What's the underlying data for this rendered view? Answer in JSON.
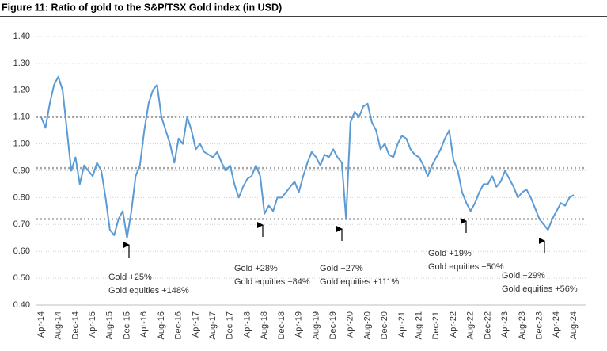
{
  "chart_data": {
    "type": "line",
    "title": "Figure 11: Ratio of gold to the S&P/TSX Gold index (in USD)",
    "categories": [
      "Apr-14",
      null,
      null,
      null,
      "Aug-14",
      null,
      null,
      null,
      "Dec-14",
      null,
      null,
      null,
      "Apr-15",
      null,
      null,
      null,
      "Aug-15",
      null,
      null,
      null,
      "Dec-15",
      null,
      null,
      null,
      "Apr-16",
      null,
      null,
      null,
      "Aug-16",
      null,
      null,
      null,
      "Dec-16",
      null,
      null,
      null,
      "Apr-17",
      null,
      null,
      null,
      "Aug-17",
      null,
      null,
      null,
      "Dec-17",
      null,
      null,
      null,
      "Apr-18",
      null,
      null,
      null,
      "Aug-18",
      null,
      null,
      null,
      "Dec-18",
      null,
      null,
      null,
      "Apr-19",
      null,
      null,
      null,
      "Aug-19",
      null,
      null,
      null,
      "Dec-19",
      null,
      null,
      null,
      "Apr-20",
      null,
      null,
      null,
      "Aug-20",
      null,
      null,
      null,
      "Dec-20",
      null,
      null,
      null,
      "Apr-21",
      null,
      null,
      null,
      "Aug-21",
      null,
      null,
      null,
      "Dec-21",
      null,
      null,
      null,
      "Apr-22",
      null,
      null,
      null,
      "Aug-22",
      null,
      null,
      null,
      "Dec-22",
      null,
      null,
      null,
      "Apr-23",
      null,
      null,
      null,
      "Aug-23",
      null,
      null,
      null,
      "Dec-23",
      null,
      null,
      null,
      "Apr-24",
      null,
      null,
      null,
      "Aug-24"
    ],
    "series": [
      {
        "color": "#5b9bd5",
        "values": [
          1.1,
          1.06,
          1.15,
          1.22,
          1.25,
          1.2,
          1.05,
          0.9,
          0.95,
          0.85,
          0.92,
          0.9,
          0.88,
          0.93,
          0.9,
          0.8,
          0.68,
          0.66,
          0.72,
          0.75,
          0.65,
          0.75,
          0.88,
          0.92,
          1.05,
          1.15,
          1.2,
          1.22,
          1.1,
          1.05,
          1.0,
          0.93,
          1.02,
          1.0,
          1.1,
          1.05,
          0.98,
          1.0,
          0.97,
          0.96,
          0.95,
          0.97,
          0.93,
          0.9,
          0.92,
          0.85,
          0.8,
          0.84,
          0.87,
          0.88,
          0.92,
          0.88,
          0.74,
          0.77,
          0.75,
          0.8,
          0.8,
          0.82,
          0.84,
          0.86,
          0.82,
          0.88,
          0.93,
          0.97,
          0.95,
          0.92,
          0.96,
          0.95,
          0.98,
          0.95,
          0.93,
          0.72,
          1.08,
          1.12,
          1.1,
          1.14,
          1.15,
          1.08,
          1.05,
          0.98,
          1.0,
          0.96,
          0.95,
          1.0,
          1.03,
          1.02,
          0.98,
          0.96,
          0.95,
          0.92,
          0.88,
          0.92,
          0.95,
          0.98,
          1.02,
          1.05,
          0.94,
          0.9,
          0.82,
          0.78,
          0.75,
          0.78,
          0.82,
          0.85,
          0.85,
          0.88,
          0.84,
          0.86,
          0.9,
          0.87,
          0.84,
          0.8,
          0.82,
          0.83,
          0.8,
          0.76,
          0.72,
          0.7,
          0.68,
          0.72,
          0.75,
          0.78,
          0.77,
          0.8,
          0.81
        ]
      }
    ],
    "ylim": [
      0.4,
      1.4
    ],
    "yticks": [
      {
        "value": 0.4,
        "label": "0.40"
      },
      {
        "value": 0.5,
        "label": "0.50"
      },
      {
        "value": 0.6,
        "label": "0.60"
      },
      {
        "value": 0.7,
        "label": "0.70"
      },
      {
        "value": 0.8,
        "label": "0.80"
      },
      {
        "value": 0.9,
        "label": "0.90"
      },
      {
        "value": 1.0,
        "label": "1.00"
      },
      {
        "value": 1.1,
        "label": "1.10"
      },
      {
        "value": 1.2,
        "label": "1.20"
      },
      {
        "value": 1.3,
        "label": "1.30"
      },
      {
        "value": 1.4,
        "label": "1.40"
      }
    ],
    "grid": true,
    "reference_lines": [
      1.1,
      0.91,
      0.72
    ],
    "annotations": [
      [
        "Gold +25%",
        "Gold equities +148%"
      ],
      [
        "Gold +28%",
        "Gold equities +84%"
      ],
      [
        "Gold +27%",
        "Gold equities +111%"
      ],
      [
        "Gold +19%",
        "Gold equities +50%"
      ],
      [
        "Gold +29%",
        "Gold equities +56%"
      ]
    ]
  }
}
